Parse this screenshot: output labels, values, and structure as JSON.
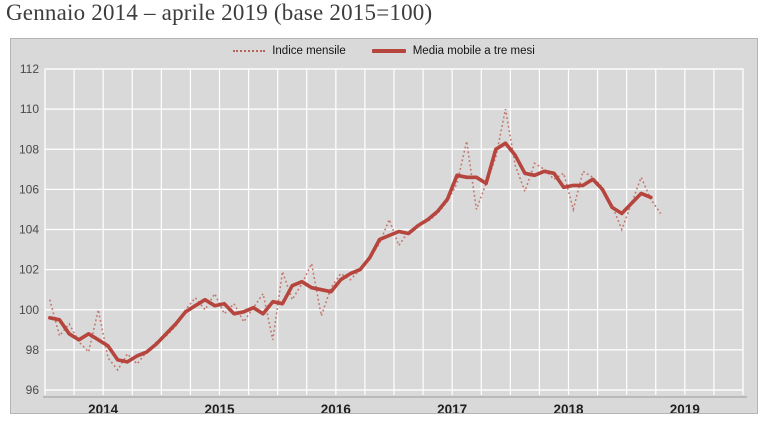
{
  "title": "Gennaio 2014 – aprile 2019 (base 2015=100)",
  "legend": {
    "monthly_label": "Indice mensile",
    "moving_average_label": "Media mobile a tre mesi"
  },
  "colors": {
    "chart_background": "#d9d9d9",
    "chart_border": "#b5b5b5",
    "gridline": "#ffffff",
    "axis_line": "#9b9b9b",
    "monthly_line": "#c4766e",
    "moving_average_line": "#b6453e",
    "y_label": "#4a4a4a",
    "x_label": "#1f1f1f",
    "title_text": "#3d3d3d"
  },
  "chart_data": {
    "type": "line",
    "title": "Gennaio 2014 – aprile 2019 (base 2015=100)",
    "x_start": "2014-01",
    "x_end": "2019-04",
    "x_axis": {
      "year_labels": [
        "2014",
        "2015",
        "2016",
        "2017",
        "2018",
        "2019"
      ],
      "months_total": 72,
      "gridline_every_months": 3
    },
    "y_axis": {
      "min": 96,
      "max": 112,
      "step": 2,
      "tick_labels": [
        "96",
        "98",
        "100",
        "102",
        "104",
        "106",
        "108",
        "110",
        "112"
      ]
    },
    "legend_position": "top-center",
    "grid": true,
    "series": [
      {
        "name": "Indice mensile",
        "style": "dotted",
        "color": "#c4766e",
        "values": [
          100.5,
          98.7,
          99.3,
          98.4,
          97.9,
          100.0,
          97.6,
          97.0,
          97.8,
          97.3,
          97.9,
          98.4,
          98.7,
          99.2,
          100.0,
          100.6,
          100.0,
          100.8,
          99.8,
          100.3,
          99.4,
          100.1,
          100.8,
          98.5,
          101.9,
          100.5,
          101.3,
          102.3,
          99.7,
          101.1,
          101.8,
          101.5,
          102.0,
          102.6,
          103.3,
          104.5,
          103.2,
          103.9,
          104.2,
          104.4,
          104.8,
          105.4,
          106.3,
          108.4,
          105.0,
          106.3,
          107.6,
          110.0,
          107.2,
          105.9,
          107.3,
          107.0,
          106.5,
          106.8,
          105.0,
          106.9,
          106.6,
          106.1,
          105.2,
          104.0,
          105.3,
          106.6,
          105.5,
          104.8
        ]
      },
      {
        "name": "Media mobile a tre mesi",
        "style": "solid",
        "color": "#b6453e",
        "note": "centered 3-month moving average, plotted Jan 2014 - Mar 2019",
        "values": [
          99.6,
          99.5,
          98.8,
          98.5,
          98.8,
          98.5,
          98.2,
          97.5,
          97.4,
          97.7,
          97.9,
          98.3,
          98.8,
          99.3,
          99.9,
          100.2,
          100.5,
          100.2,
          100.3,
          99.8,
          99.9,
          100.1,
          99.8,
          100.4,
          100.3,
          101.2,
          101.4,
          101.1,
          101.0,
          100.9,
          101.5,
          101.8,
          102.0,
          102.6,
          103.5,
          103.7,
          103.9,
          103.8,
          104.2,
          104.5,
          104.9,
          105.5,
          106.7,
          106.6,
          106.6,
          106.3,
          108.0,
          108.3,
          107.7,
          106.8,
          106.7,
          106.9,
          106.8,
          106.1,
          106.2,
          106.2,
          106.5,
          106.0,
          105.1,
          104.8,
          105.3,
          105.8,
          105.6
        ]
      }
    ]
  }
}
